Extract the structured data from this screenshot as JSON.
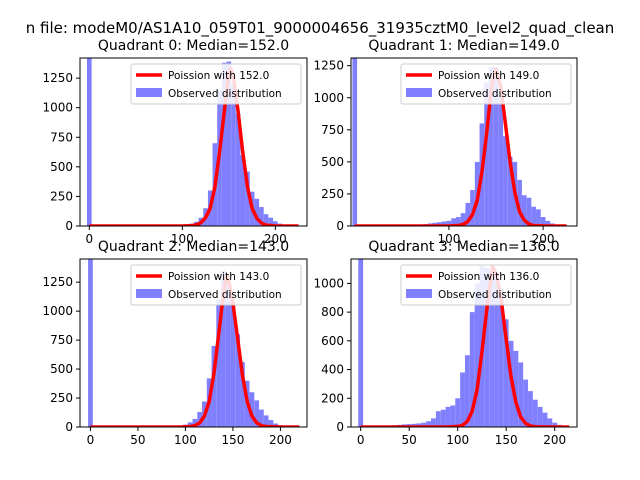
{
  "figure": {
    "suptitle": "n file: modeM0/AS1A10_059T01_9000004656_31935cztM0_level2_quad_clean"
  },
  "colors": {
    "hist": "#8080ff",
    "curve": "#ff0000",
    "axes": "#000000",
    "background": "#ffffff"
  },
  "chart_data": [
    {
      "type": "bar",
      "title": "Quadrant 0: Median=152.0",
      "median": 152.0,
      "xlim": [
        -10,
        234
      ],
      "ylim": [
        0,
        1420
      ],
      "xticks": [
        0,
        100,
        200
      ],
      "yticks": [
        0,
        250,
        500,
        750,
        1000,
        1250
      ],
      "legend": {
        "curve_label": "Poission with 152.0",
        "hist_label": "Observed distribution",
        "position": "top-right"
      },
      "spike": {
        "x": 0,
        "value": 1420
      },
      "hist": {
        "x": [
          105,
          110,
          115,
          120,
          125,
          130,
          135,
          140,
          145,
          150,
          155,
          160,
          165,
          170,
          175,
          180,
          185,
          190,
          195,
          200,
          205,
          210
        ],
        "values": [
          10,
          20,
          35,
          70,
          150,
          300,
          700,
          1150,
          1380,
          1390,
          1200,
          950,
          600,
          460,
          290,
          230,
          160,
          100,
          70,
          40,
          20,
          10
        ]
      },
      "poisson": {
        "x": [
          0,
          100,
          110,
          115,
          120,
          125,
          130,
          135,
          140,
          145,
          150,
          152,
          155,
          160,
          165,
          170,
          175,
          180,
          185,
          190,
          200,
          225
        ],
        "values": [
          0,
          0,
          3,
          10,
          28,
          70,
          150,
          330,
          620,
          960,
          1300,
          1330,
          1260,
          960,
          620,
          330,
          150,
          65,
          25,
          8,
          1,
          0
        ]
      }
    },
    {
      "type": "bar",
      "title": "Quadrant 1: Median=149.0",
      "median": 149.0,
      "xlim": [
        -4,
        236
      ],
      "ylim": [
        0,
        1310
      ],
      "xticks": [
        100,
        200
      ],
      "yticks": [
        0,
        250,
        500,
        750,
        1000,
        1250
      ],
      "legend": {
        "curve_label": "Poission with 149.0",
        "hist_label": "Observed distribution",
        "position": "top-right"
      },
      "spike": {
        "x": 0,
        "value": 1310
      },
      "hist": {
        "x": [
          70,
          75,
          80,
          85,
          90,
          95,
          100,
          105,
          110,
          115,
          120,
          125,
          130,
          135,
          140,
          145,
          150,
          155,
          160,
          165,
          170,
          175,
          180,
          185,
          190,
          195,
          200,
          205,
          210,
          215
        ],
        "values": [
          10,
          15,
          20,
          25,
          30,
          35,
          40,
          60,
          70,
          100,
          180,
          280,
          500,
          800,
          1120,
          1240,
          1240,
          1000,
          700,
          540,
          500,
          360,
          240,
          220,
          150,
          130,
          70,
          40,
          20,
          10
        ]
      },
      "poisson": {
        "x": [
          0,
          100,
          110,
          115,
          120,
          125,
          130,
          135,
          140,
          145,
          149,
          150,
          155,
          160,
          165,
          170,
          175,
          180,
          185,
          190,
          200,
          225
        ],
        "values": [
          0,
          0,
          4,
          12,
          35,
          90,
          200,
          420,
          720,
          1060,
          1220,
          1215,
          1090,
          800,
          500,
          260,
          110,
          45,
          15,
          4,
          1,
          0
        ]
      }
    },
    {
      "type": "bar",
      "title": "Quadrant 2: Median=143.0",
      "median": 143.0,
      "xlim": [
        -11,
        228
      ],
      "ylim": [
        0,
        1450
      ],
      "xticks": [
        0,
        50,
        100,
        150,
        200
      ],
      "yticks": [
        0,
        250,
        500,
        750,
        1000,
        1250
      ],
      "legend": {
        "curve_label": "Poission with 143.0",
        "hist_label": "Observed distribution",
        "position": "top-right"
      },
      "spike": {
        "x": 0,
        "value": 1450
      },
      "hist": {
        "x": [
          95,
          100,
          105,
          110,
          115,
          120,
          125,
          130,
          135,
          140,
          145,
          150,
          155,
          160,
          165,
          170,
          175,
          180,
          185,
          190,
          195,
          200,
          205
        ],
        "values": [
          10,
          20,
          40,
          70,
          130,
          220,
          420,
          700,
          1100,
          1350,
          1280,
          1080,
          800,
          560,
          400,
          300,
          230,
          150,
          100,
          60,
          30,
          15,
          5
        ]
      },
      "poisson": {
        "x": [
          0,
          95,
          105,
          110,
          115,
          120,
          125,
          130,
          135,
          140,
          143,
          145,
          150,
          155,
          160,
          165,
          170,
          175,
          180,
          185,
          200,
          220
        ],
        "values": [
          0,
          0,
          4,
          12,
          35,
          95,
          220,
          460,
          800,
          1150,
          1300,
          1290,
          1070,
          760,
          450,
          220,
          95,
          35,
          12,
          4,
          0,
          0
        ]
      }
    },
    {
      "type": "bar",
      "title": "Quadrant 3: Median=136.0",
      "median": 136.0,
      "xlim": [
        -10,
        223
      ],
      "ylim": [
        0,
        1170
      ],
      "xticks": [
        0,
        50,
        100,
        150,
        200
      ],
      "yticks": [
        0,
        200,
        400,
        600,
        800,
        1000
      ],
      "legend": {
        "curve_label": "Poission with 136.0",
        "hist_label": "Observed distribution",
        "position": "top-right"
      },
      "spike": {
        "x": 0,
        "value": 1170
      },
      "hist": {
        "x": [
          20,
          25,
          30,
          35,
          40,
          45,
          50,
          55,
          60,
          65,
          70,
          75,
          80,
          85,
          90,
          95,
          100,
          105,
          110,
          115,
          120,
          125,
          130,
          135,
          140,
          145,
          150,
          155,
          160,
          165,
          170,
          175,
          180,
          185,
          190,
          195,
          200,
          205,
          210
        ],
        "values": [
          5,
          8,
          10,
          12,
          15,
          18,
          20,
          22,
          25,
          30,
          40,
          60,
          110,
          120,
          140,
          150,
          200,
          380,
          500,
          800,
          1000,
          1120,
          1110,
          1100,
          1080,
          960,
          750,
          600,
          530,
          450,
          330,
          250,
          190,
          140,
          100,
          60,
          30,
          15,
          5
        ]
      },
      "poisson": {
        "x": [
          0,
          90,
          100,
          105,
          110,
          115,
          120,
          125,
          130,
          136,
          140,
          145,
          150,
          155,
          160,
          165,
          170,
          175,
          180,
          190,
          200,
          215
        ],
        "values": [
          0,
          0,
          4,
          12,
          40,
          110,
          260,
          520,
          820,
          1120,
          1060,
          880,
          610,
          350,
          170,
          70,
          25,
          8,
          2,
          0,
          0,
          0
        ]
      }
    }
  ]
}
